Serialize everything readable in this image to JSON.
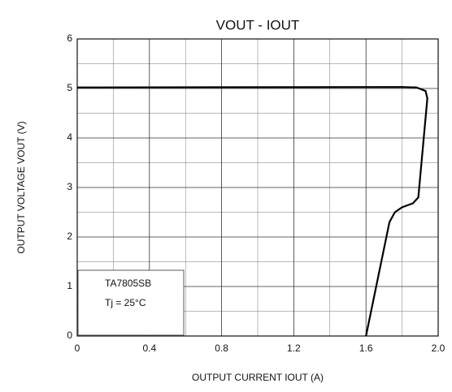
{
  "chart_data": {
    "type": "line",
    "title": "VOUT - IOUT",
    "x_label": "OUTPUT CURRENT   IOUT   (A)",
    "y_label": "OUTPUT VOLTAGE   VOUT   (V)",
    "annotations": [
      "TA7805SB",
      "Tj = 25°C"
    ],
    "xlim": [
      0,
      2.0
    ],
    "ylim": [
      0,
      6
    ],
    "xticks": [
      0,
      0.4,
      0.8,
      1.2,
      1.6,
      {
        "value": 2.0,
        "label": "2.0"
      }
    ],
    "yticks": [
      0,
      1,
      2,
      3,
      4,
      5,
      6
    ],
    "minor_xticks": [
      0.2,
      0.6,
      1.0,
      1.4,
      1.8
    ],
    "minor_yticks": [
      0.5,
      1.5,
      2.5,
      3.5,
      4.5,
      5.5
    ],
    "grid": true,
    "series": [
      {
        "color": "#000000",
        "x": [
          0,
          1.8,
          1.88,
          1.93,
          1.94,
          1.92,
          1.9,
          1.89,
          1.86,
          1.8,
          1.76,
          1.73,
          1.6
        ],
        "values": [
          5.02,
          5.03,
          5.02,
          4.95,
          4.8,
          4.0,
          3.2,
          2.8,
          2.68,
          2.6,
          2.5,
          2.3,
          0
        ]
      }
    ]
  }
}
